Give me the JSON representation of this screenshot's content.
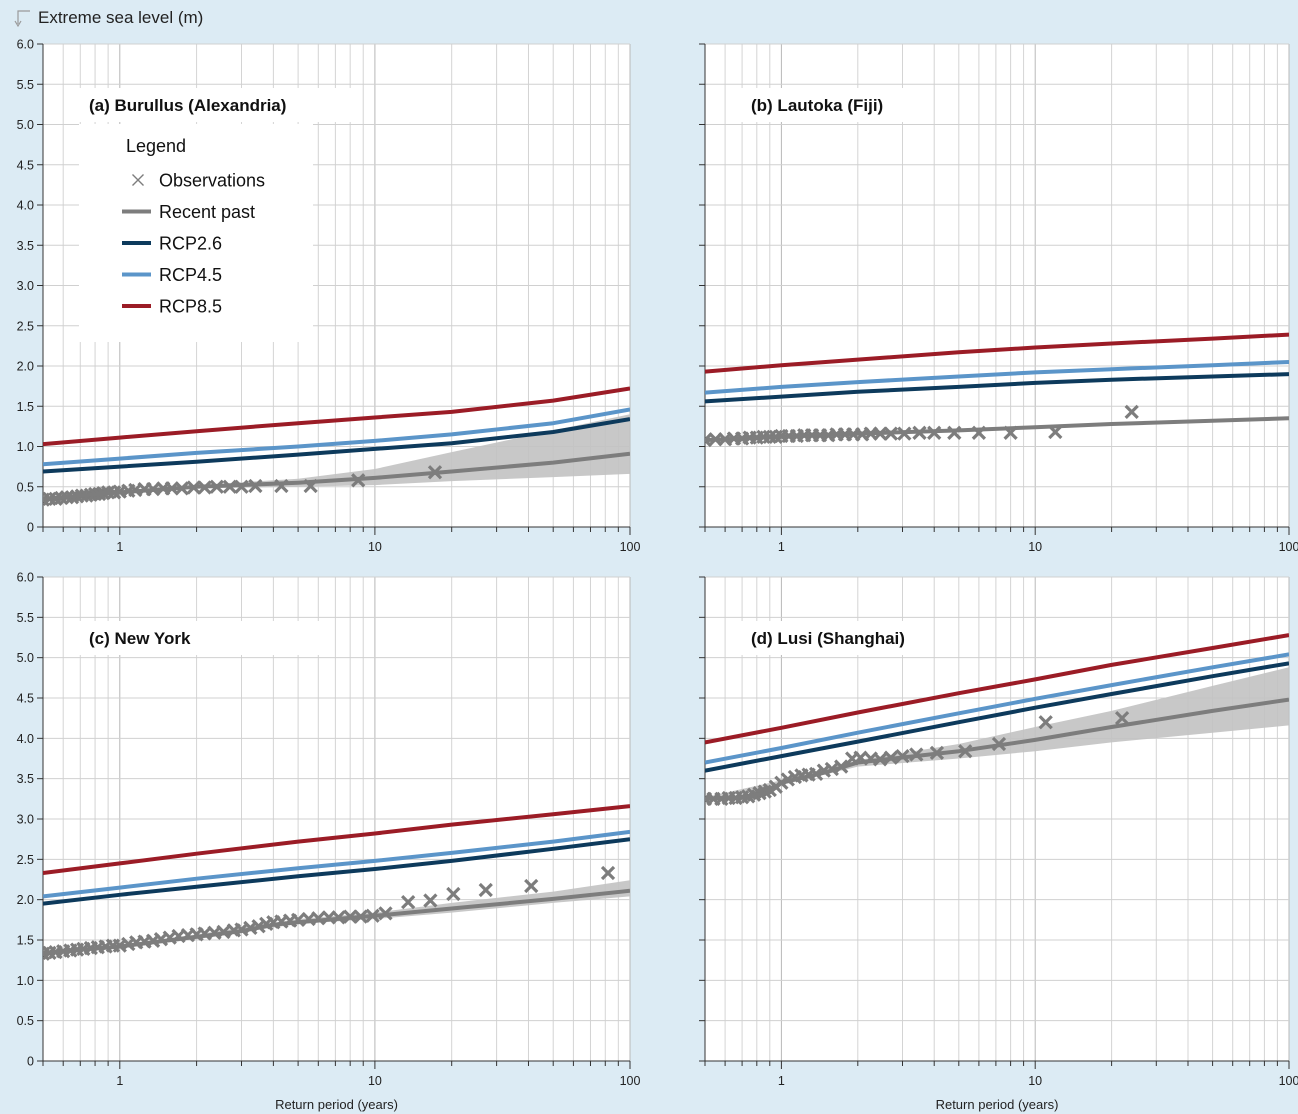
{
  "header": {
    "ylabel": "Extreme sea level (m)"
  },
  "colors": {
    "background": "#dcebf4",
    "observations": "#7d7d7d",
    "recent_past": "#7d7d7d",
    "band": "#c2c2c2",
    "rcp26": "#0d3a5c",
    "rcp45": "#5b95c9",
    "rcp85": "#9b1c26"
  },
  "legend": {
    "title": "Legend",
    "items": [
      {
        "key": "obs",
        "label": "Observations",
        "marker": "x",
        "color": "#7d7d7d"
      },
      {
        "key": "recent",
        "label": "Recent past",
        "marker": "line",
        "color": "#7d7d7d"
      },
      {
        "key": "rcp26",
        "label": "RCP2.6",
        "marker": "line",
        "color": "#0d3a5c"
      },
      {
        "key": "rcp45",
        "label": "RCP4.5",
        "marker": "line",
        "color": "#5b95c9"
      },
      {
        "key": "rcp85",
        "label": "RCP8.5",
        "marker": "line",
        "color": "#9b1c26"
      }
    ]
  },
  "chart_data": [
    {
      "type": "line",
      "title": "(a) Burullus (Alexandria)",
      "xlabel": "",
      "ylabel": "Extreme sea level (m)",
      "xscale": "log",
      "xlim": [
        0.5,
        100
      ],
      "ylim": [
        0,
        6
      ],
      "xticks": [
        "1",
        "10",
        "100"
      ],
      "yticks": [
        "0",
        "0.5",
        "1.0",
        "1.5",
        "2.0",
        "2.5",
        "3.0",
        "3.5",
        "4.0",
        "4.5",
        "5.0",
        "5.5",
        "6.0"
      ],
      "grid": true,
      "legend": "upper-left",
      "series": [
        {
          "key": "rcp85",
          "x": [
            0.5,
            1,
            2,
            5,
            10,
            20,
            50,
            100
          ],
          "y": [
            1.03,
            1.11,
            1.19,
            1.29,
            1.36,
            1.43,
            1.57,
            1.72
          ]
        },
        {
          "key": "rcp45",
          "x": [
            0.5,
            1,
            2,
            5,
            10,
            20,
            50,
            100
          ],
          "y": [
            0.78,
            0.85,
            0.92,
            1.0,
            1.07,
            1.15,
            1.29,
            1.46
          ]
        },
        {
          "key": "rcp26",
          "x": [
            0.5,
            1,
            2,
            5,
            10,
            20,
            50,
            100
          ],
          "y": [
            0.69,
            0.75,
            0.81,
            0.9,
            0.97,
            1.04,
            1.18,
            1.34
          ]
        },
        {
          "key": "recent",
          "x": [
            0.5,
            1,
            2,
            5,
            10,
            20,
            50,
            100
          ],
          "y": [
            0.35,
            0.43,
            0.5,
            0.55,
            0.61,
            0.69,
            0.8,
            0.91
          ]
        }
      ],
      "band": {
        "x": [
          0.5,
          1,
          2,
          5,
          10,
          20,
          50,
          100
        ],
        "upper": [
          0.36,
          0.45,
          0.52,
          0.6,
          0.72,
          0.93,
          1.2,
          1.4
        ],
        "lower": [
          0.34,
          0.41,
          0.48,
          0.5,
          0.52,
          0.57,
          0.62,
          0.66
        ]
      },
      "observations": {
        "x": [
          0.5,
          0.53,
          0.56,
          0.59,
          0.62,
          0.65,
          0.68,
          0.71,
          0.74,
          0.77,
          0.8,
          0.83,
          0.86,
          0.9,
          0.95,
          1.0,
          1.08,
          1.15,
          1.25,
          1.35,
          1.48,
          1.6,
          1.75,
          1.95,
          2.15,
          2.4,
          2.7,
          3.0,
          3.4,
          4.3,
          5.6,
          8.6,
          17.2
        ],
        "y": [
          0.34,
          0.35,
          0.35,
          0.36,
          0.37,
          0.37,
          0.38,
          0.39,
          0.39,
          0.4,
          0.41,
          0.41,
          0.42,
          0.43,
          0.43,
          0.44,
          0.45,
          0.46,
          0.47,
          0.47,
          0.48,
          0.48,
          0.48,
          0.49,
          0.49,
          0.5,
          0.5,
          0.5,
          0.51,
          0.51,
          0.51,
          0.58,
          0.68
        ]
      }
    },
    {
      "type": "line",
      "title": "(b) Lautoka (Fiji)",
      "xlabel": "",
      "ylabel": "",
      "xscale": "log",
      "xlim": [
        0.5,
        100
      ],
      "ylim": [
        0,
        6
      ],
      "xticks": [
        "1",
        "10",
        "100"
      ],
      "yticks": [],
      "grid": true,
      "series": [
        {
          "key": "rcp85",
          "x": [
            0.5,
            1,
            2,
            5,
            10,
            20,
            50,
            100
          ],
          "y": [
            1.93,
            2.01,
            2.08,
            2.17,
            2.23,
            2.28,
            2.34,
            2.39
          ]
        },
        {
          "key": "rcp45",
          "x": [
            0.5,
            1,
            2,
            5,
            10,
            20,
            50,
            100
          ],
          "y": [
            1.67,
            1.74,
            1.8,
            1.87,
            1.92,
            1.96,
            2.01,
            2.05
          ]
        },
        {
          "key": "rcp26",
          "x": [
            0.5,
            1,
            2,
            5,
            10,
            20,
            50,
            100
          ],
          "y": [
            1.56,
            1.62,
            1.68,
            1.74,
            1.79,
            1.83,
            1.87,
            1.9
          ]
        },
        {
          "key": "recent",
          "x": [
            0.5,
            1,
            2,
            5,
            10,
            20,
            50,
            100
          ],
          "y": [
            1.08,
            1.12,
            1.16,
            1.2,
            1.24,
            1.28,
            1.32,
            1.35
          ]
        }
      ],
      "band": {
        "x": [
          0.5,
          1,
          2,
          5,
          10,
          20,
          50,
          100
        ],
        "upper": [
          1.09,
          1.13,
          1.17,
          1.22,
          1.26,
          1.3,
          1.34,
          1.37
        ],
        "lower": [
          1.07,
          1.11,
          1.15,
          1.18,
          1.22,
          1.26,
          1.3,
          1.33
        ]
      },
      "observations": {
        "x": [
          0.5,
          0.55,
          0.6,
          0.65,
          0.7,
          0.75,
          0.8,
          0.85,
          0.9,
          0.95,
          1.0,
          1.07,
          1.15,
          1.23,
          1.32,
          1.42,
          1.53,
          1.65,
          1.78,
          1.92,
          2.08,
          2.25,
          2.45,
          2.7,
          3.05,
          3.5,
          4.0,
          4.8,
          6.0,
          8.0,
          12.0,
          24.0
        ],
        "y": [
          1.08,
          1.09,
          1.09,
          1.1,
          1.1,
          1.11,
          1.11,
          1.12,
          1.12,
          1.12,
          1.13,
          1.13,
          1.13,
          1.14,
          1.14,
          1.14,
          1.14,
          1.15,
          1.15,
          1.15,
          1.15,
          1.16,
          1.16,
          1.16,
          1.16,
          1.17,
          1.17,
          1.17,
          1.17,
          1.17,
          1.18,
          1.43
        ]
      }
    },
    {
      "type": "line",
      "title": "(c) New York",
      "xlabel": "Return period (years)",
      "ylabel": "",
      "xscale": "log",
      "xlim": [
        0.5,
        100
      ],
      "ylim": [
        0,
        6
      ],
      "xticks": [
        "1",
        "10",
        "100"
      ],
      "yticks": [
        "0",
        "0.5",
        "1.0",
        "1.5",
        "2.0",
        "2.5",
        "3.0",
        "3.5",
        "4.0",
        "4.5",
        "5.0",
        "5.5",
        "6.0"
      ],
      "grid": true,
      "series": [
        {
          "key": "rcp85",
          "x": [
            0.5,
            1,
            2,
            5,
            10,
            20,
            50,
            100
          ],
          "y": [
            2.33,
            2.45,
            2.57,
            2.72,
            2.82,
            2.93,
            3.06,
            3.16
          ]
        },
        {
          "key": "rcp45",
          "x": [
            0.5,
            1,
            2,
            5,
            10,
            20,
            50,
            100
          ],
          "y": [
            2.04,
            2.15,
            2.26,
            2.39,
            2.48,
            2.58,
            2.72,
            2.84
          ]
        },
        {
          "key": "rcp26",
          "x": [
            0.5,
            1,
            2,
            5,
            10,
            20,
            50,
            100
          ],
          "y": [
            1.95,
            2.06,
            2.16,
            2.29,
            2.38,
            2.48,
            2.63,
            2.75
          ]
        },
        {
          "key": "recent",
          "x": [
            0.5,
            1,
            2,
            3,
            4,
            5,
            10,
            20,
            50,
            100
          ],
          "y": [
            1.34,
            1.42,
            1.54,
            1.61,
            1.69,
            1.72,
            1.8,
            1.89,
            2.01,
            2.11
          ]
        }
      ],
      "band": {
        "x": [
          0.5,
          1,
          2,
          5,
          10,
          20,
          50,
          100
        ],
        "upper": [
          1.36,
          1.44,
          1.57,
          1.76,
          1.84,
          1.96,
          2.1,
          2.24
        ],
        "lower": [
          1.32,
          1.4,
          1.51,
          1.7,
          1.76,
          1.84,
          1.96,
          2.04
        ]
      },
      "observations": {
        "x": [
          0.5,
          0.53,
          0.56,
          0.6,
          0.64,
          0.68,
          0.72,
          0.77,
          0.82,
          0.88,
          0.94,
          1.0,
          1.08,
          1.16,
          1.25,
          1.35,
          1.45,
          1.57,
          1.7,
          1.85,
          2.0,
          2.15,
          2.35,
          2.55,
          2.8,
          3.0,
          3.25,
          3.5,
          3.75,
          4.0,
          4.3,
          4.65,
          5.0,
          5.5,
          6.0,
          6.6,
          7.2,
          8.0,
          8.8,
          9.8,
          11.0,
          13.5,
          16.5,
          20.3,
          27.2,
          41.0,
          82.0
        ],
        "y": [
          1.33,
          1.34,
          1.35,
          1.36,
          1.37,
          1.38,
          1.39,
          1.4,
          1.41,
          1.42,
          1.43,
          1.43,
          1.45,
          1.47,
          1.48,
          1.49,
          1.51,
          1.53,
          1.55,
          1.56,
          1.57,
          1.58,
          1.59,
          1.6,
          1.62,
          1.63,
          1.65,
          1.67,
          1.7,
          1.72,
          1.73,
          1.74,
          1.75,
          1.76,
          1.77,
          1.78,
          1.78,
          1.79,
          1.79,
          1.8,
          1.83,
          1.97,
          1.99,
          2.07,
          2.12,
          2.17,
          2.33
        ]
      }
    },
    {
      "type": "line",
      "title": "(d) Lusi (Shanghai)",
      "xlabel": "Return period (years)",
      "ylabel": "",
      "xscale": "log",
      "xlim": [
        0.5,
        100
      ],
      "ylim": [
        0,
        6
      ],
      "xticks": [
        "1",
        "10",
        "100"
      ],
      "yticks": [],
      "grid": true,
      "series": [
        {
          "key": "rcp85",
          "x": [
            0.5,
            1,
            2,
            5,
            10,
            20,
            50,
            100
          ],
          "y": [
            3.95,
            4.13,
            4.32,
            4.56,
            4.73,
            4.91,
            5.12,
            5.28
          ]
        },
        {
          "key": "rcp45",
          "x": [
            0.5,
            1,
            2,
            5,
            10,
            20,
            50,
            100
          ],
          "y": [
            3.7,
            3.88,
            4.07,
            4.31,
            4.49,
            4.66,
            4.88,
            5.04
          ]
        },
        {
          "key": "rcp26",
          "x": [
            0.5,
            1,
            2,
            5,
            10,
            20,
            50,
            100
          ],
          "y": [
            3.6,
            3.78,
            3.96,
            4.2,
            4.38,
            4.55,
            4.77,
            4.93
          ]
        },
        {
          "key": "recent",
          "x": [
            0.5,
            0.7,
            0.9,
            1,
            1.5,
            2,
            5,
            10,
            20,
            50,
            100
          ],
          "y": [
            3.25,
            3.27,
            3.33,
            3.45,
            3.58,
            3.7,
            3.84,
            3.98,
            4.14,
            4.34,
            4.48
          ]
        }
      ],
      "band": {
        "x": [
          0.5,
          1,
          2,
          5,
          10,
          20,
          50,
          100
        ],
        "upper": [
          3.27,
          3.48,
          3.73,
          3.93,
          4.14,
          4.34,
          4.65,
          4.88
        ],
        "lower": [
          3.23,
          3.42,
          3.65,
          3.75,
          3.84,
          3.95,
          4.07,
          4.16
        ]
      },
      "observations": {
        "x": [
          0.5,
          0.54,
          0.58,
          0.62,
          0.66,
          0.7,
          0.74,
          0.78,
          0.82,
          0.86,
          0.9,
          0.95,
          1.0,
          1.06,
          1.13,
          1.2,
          1.28,
          1.37,
          1.47,
          1.58,
          1.72,
          1.9,
          2.05,
          2.25,
          2.45,
          2.7,
          3.0,
          3.4,
          4.1,
          5.3,
          7.2,
          11.0,
          22.0
        ],
        "y": [
          3.25,
          3.25,
          3.25,
          3.26,
          3.26,
          3.27,
          3.28,
          3.3,
          3.32,
          3.34,
          3.36,
          3.4,
          3.45,
          3.49,
          3.52,
          3.54,
          3.55,
          3.56,
          3.6,
          3.62,
          3.65,
          3.75,
          3.76,
          3.75,
          3.74,
          3.76,
          3.78,
          3.8,
          3.82,
          3.84,
          3.93,
          4.2,
          4.25
        ]
      }
    }
  ]
}
